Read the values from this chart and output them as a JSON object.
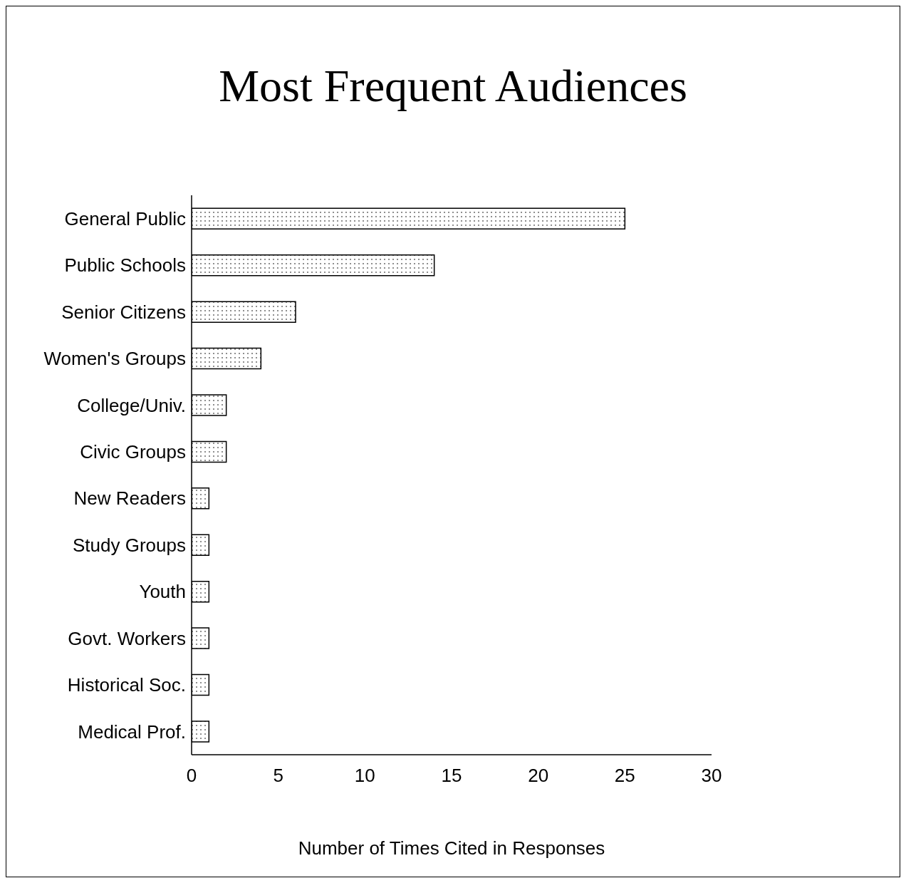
{
  "chart_data": {
    "type": "bar",
    "orientation": "horizontal",
    "title": "Most Frequent Audiences",
    "xlabel": "Number of Times Cited in Responses",
    "categories": [
      "General Public",
      "Public Schools",
      "Senior Citizens",
      "Women's Groups",
      "College/Univ.",
      "Civic Groups",
      "New Readers",
      "Study Groups",
      "Youth",
      "Govt. Workers",
      "Historical Soc.",
      "Medical Prof."
    ],
    "values": [
      25,
      14,
      6,
      4,
      2,
      2,
      1,
      1,
      1,
      1,
      1,
      1
    ],
    "color": "#000000",
    "xlim": [
      0,
      30
    ],
    "xticks": [
      0,
      5,
      10,
      15,
      20,
      25,
      30
    ],
    "grid": false
  }
}
